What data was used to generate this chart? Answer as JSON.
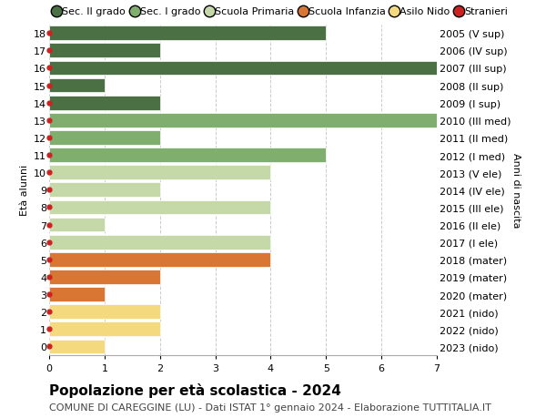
{
  "ages": [
    18,
    17,
    16,
    15,
    14,
    13,
    12,
    11,
    10,
    9,
    8,
    7,
    6,
    5,
    4,
    3,
    2,
    1,
    0
  ],
  "right_labels": [
    "2005 (V sup)",
    "2006 (IV sup)",
    "2007 (III sup)",
    "2008 (II sup)",
    "2009 (I sup)",
    "2010 (III med)",
    "2011 (II med)",
    "2012 (I med)",
    "2013 (V ele)",
    "2014 (IV ele)",
    "2015 (III ele)",
    "2016 (II ele)",
    "2017 (I ele)",
    "2018 (mater)",
    "2019 (mater)",
    "2020 (mater)",
    "2021 (nido)",
    "2022 (nido)",
    "2023 (nido)"
  ],
  "values": [
    5,
    2,
    7,
    1,
    2,
    7,
    2,
    5,
    4,
    2,
    4,
    1,
    4,
    4,
    2,
    1,
    2,
    2,
    1
  ],
  "age_colors": {
    "18": "#4a7043",
    "17": "#4a7043",
    "16": "#4a7043",
    "15": "#4a7043",
    "14": "#4a7043",
    "13": "#7fae6e",
    "12": "#7fae6e",
    "11": "#7fae6e",
    "10": "#c5d9a8",
    "9": "#c5d9a8",
    "8": "#c5d9a8",
    "7": "#c5d9a8",
    "6": "#c5d9a8",
    "5": "#d97634",
    "4": "#d97634",
    "3": "#d97634",
    "2": "#f5d97e",
    "1": "#f5d97e",
    "0": "#f5d97e"
  },
  "stranieri_color": "#cc2222",
  "bar_height": 0.82,
  "xlim": [
    0,
    7
  ],
  "ylim": [
    -0.5,
    18.5
  ],
  "ylabel": "Età alunni",
  "right_ylabel": "Anni di nascita",
  "title": "Popolazione per età scolastica - 2024",
  "subtitle": "COMUNE DI CAREGGINE (LU) - Dati ISTAT 1° gennaio 2024 - Elaborazione TUTTITALIA.IT",
  "legend_entries": [
    "Sec. II grado",
    "Sec. I grado",
    "Scuola Primaria",
    "Scuola Infanzia",
    "Asilo Nido",
    "Stranieri"
  ],
  "legend_colors": [
    "#4a7043",
    "#7fae6e",
    "#c5d9a8",
    "#d97634",
    "#f5d97e",
    "#cc2222"
  ],
  "grid_color": "#cccccc",
  "bg_color": "#ffffff",
  "title_fontsize": 11,
  "subtitle_fontsize": 8,
  "tick_fontsize": 8,
  "label_fontsize": 8,
  "legend_fontsize": 8,
  "xticks": [
    0,
    1,
    2,
    3,
    4,
    5,
    6,
    7
  ]
}
